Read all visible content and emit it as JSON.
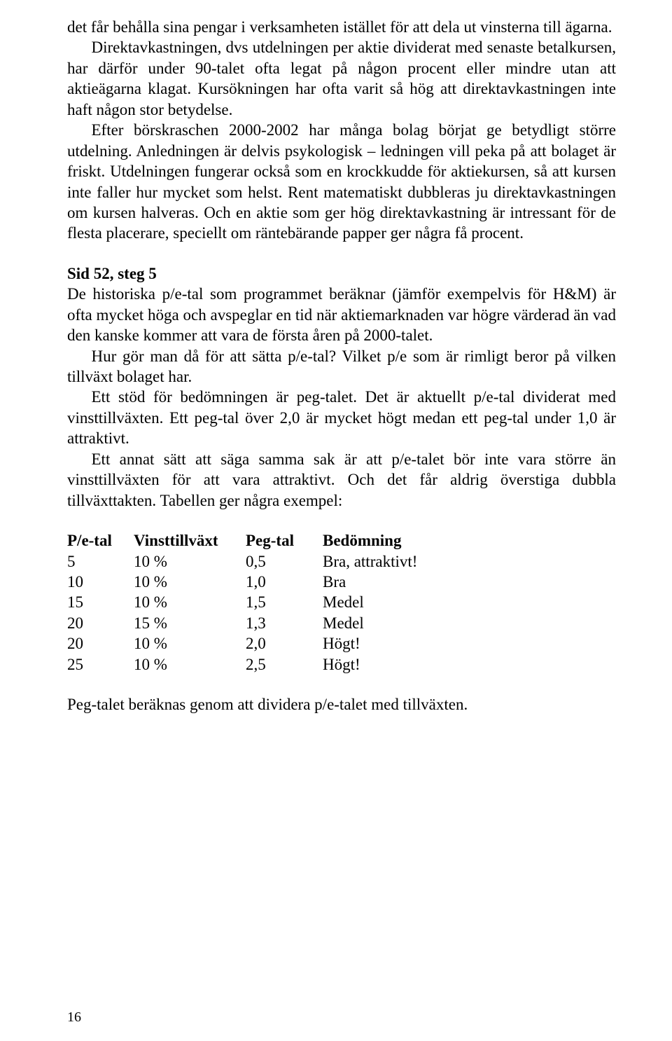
{
  "colors": {
    "background": "#ffffff",
    "text": "#000000"
  },
  "typography": {
    "font_family": "Times New Roman",
    "body_fontsize_pt": 17,
    "heading_weight": "bold",
    "line_height": 1.28
  },
  "paragraphs": {
    "p1": "det får behålla sina pengar i verksamheten istället för att dela ut vinsterna till ägarna.",
    "p2": "Direktavkastningen, dvs utdelningen per aktie dividerat med senaste betalkursen, har därför under 90-talet ofta legat på någon procent eller mindre utan att aktieägarna klagat. Kursökningen har ofta varit så hög att direktavkastningen inte haft någon stor betydelse.",
    "p3": "Efter börskraschen 2000-2002 har många bolag börjat ge betydligt större utdelning. Anledningen är delvis psykologisk – ledningen vill peka på att bolaget är friskt. Utdelningen fungerar också som en krockkudde för aktiekursen, så att kursen inte faller hur mycket som helst. Rent matematiskt dubbleras ju direktavkastningen om kursen halveras. Och en aktie som ger hög direktavkastning är intressant för de flesta placerare, speciellt om räntebärande papper ger några få procent."
  },
  "section": {
    "heading": "Sid 52, steg 5",
    "p4": "De historiska p/e-tal som programmet beräknar (jämför exempelvis för H&M) är ofta mycket höga och avspeglar en tid när aktiemarknaden var högre värderad än vad den kanske kommer att vara de första åren på 2000-talet.",
    "p5": "Hur gör man då för att sätta p/e-tal? Vilket p/e som är rimligt beror på vilken tillväxt bolaget har.",
    "p6": "Ett stöd för bedömningen är peg-talet. Det är aktuellt p/e-tal dividerat med vinsttillväxten. Ett peg-tal över 2,0 är mycket högt medan ett peg-tal under 1,0 är attraktivt.",
    "p7": "Ett annat sätt att säga samma sak är att p/e-talet bör inte vara större än vinsttillväxten för att vara attraktivt. Och det får aldrig överstiga dubbla tillväxttakten. Tabellen ger några exempel:"
  },
  "table": {
    "headers": {
      "pe": "P/e-tal",
      "vt": "Vinsttillväxt",
      "peg": "Peg-tal",
      "bed": "Bedömning"
    },
    "rows": [
      {
        "pe": "5",
        "vt": "10 %",
        "peg": "0,5",
        "bed": "Bra, attraktivt!"
      },
      {
        "pe": "10",
        "vt": "10 %",
        "peg": "1,0",
        "bed": "Bra"
      },
      {
        "pe": "15",
        "vt": "10 %",
        "peg": "1,5",
        "bed": "Medel"
      },
      {
        "pe": "20",
        "vt": "15 %",
        "peg": "1,3",
        "bed": "Medel"
      },
      {
        "pe": "20",
        "vt": "10 %",
        "peg": "2,0",
        "bed": "Högt!"
      },
      {
        "pe": "25",
        "vt": "10 %",
        "peg": "2,5",
        "bed": "Högt!"
      }
    ]
  },
  "footer_note": "Peg-talet beräknas genom att dividera p/e-talet med tillväxten.",
  "page_number": "16"
}
